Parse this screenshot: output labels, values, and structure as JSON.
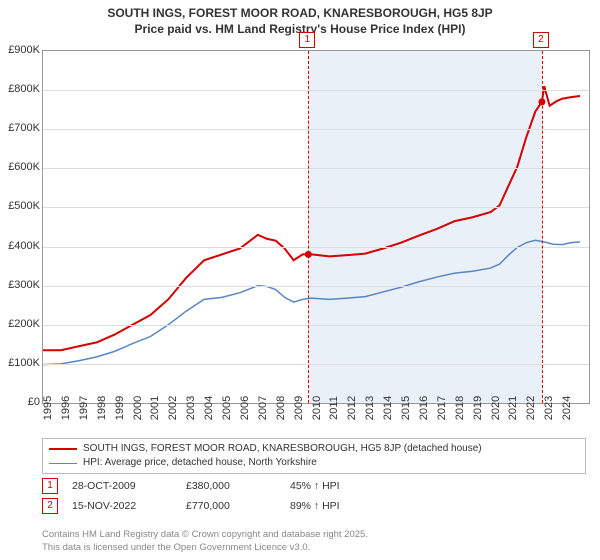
{
  "title": {
    "line1": "SOUTH INGS, FOREST MOOR ROAD, KNARESBOROUGH, HG5 8JP",
    "line2": "Price paid vs. HM Land Registry's House Price Index (HPI)",
    "fontsize": 12,
    "color": "#333333"
  },
  "chart": {
    "type": "line",
    "background_color": "#ffffff",
    "grid_color": "#dddddd",
    "border_color": "#999999",
    "shaded_region_color": "#eaf0f8",
    "x_years": [
      1995,
      1996,
      1997,
      1998,
      1999,
      2000,
      2001,
      2002,
      2003,
      2004,
      2005,
      2006,
      2007,
      2008,
      2009,
      2010,
      2011,
      2012,
      2013,
      2014,
      2015,
      2016,
      2017,
      2018,
      2019,
      2020,
      2021,
      2022,
      2023,
      2024
    ],
    "x_range": [
      1995,
      2025.5
    ],
    "ylim": [
      0,
      900
    ],
    "ytick_step": 100,
    "y_tick_labels": [
      "£0",
      "£100K",
      "£200K",
      "£300K",
      "£400K",
      "£500K",
      "£600K",
      "£700K",
      "£800K",
      "£900K"
    ],
    "tick_fontsize": 11,
    "shaded_start": 2009.82,
    "shaded_end": 2022.87,
    "series": {
      "property": {
        "color": "#d40000",
        "width": 2,
        "data": [
          [
            1995,
            135
          ],
          [
            1996,
            135
          ],
          [
            1997,
            145
          ],
          [
            1998,
            155
          ],
          [
            1999,
            175
          ],
          [
            2000,
            200
          ],
          [
            2001,
            225
          ],
          [
            2002,
            265
          ],
          [
            2003,
            320
          ],
          [
            2004,
            365
          ],
          [
            2005,
            380
          ],
          [
            2006,
            395
          ],
          [
            2007,
            430
          ],
          [
            2007.5,
            420
          ],
          [
            2008,
            415
          ],
          [
            2008.5,
            395
          ],
          [
            2009,
            365
          ],
          [
            2009.5,
            380
          ],
          [
            2009.82,
            380
          ],
          [
            2010,
            380
          ],
          [
            2011,
            375
          ],
          [
            2012,
            378
          ],
          [
            2013,
            382
          ],
          [
            2014,
            395
          ],
          [
            2015,
            410
          ],
          [
            2016,
            428
          ],
          [
            2017,
            445
          ],
          [
            2018,
            465
          ],
          [
            2019,
            475
          ],
          [
            2020,
            488
          ],
          [
            2020.5,
            505
          ],
          [
            2021,
            555
          ],
          [
            2021.5,
            605
          ],
          [
            2022,
            680
          ],
          [
            2022.5,
            745
          ],
          [
            2022.87,
            770
          ],
          [
            2023,
            810
          ],
          [
            2023.3,
            760
          ],
          [
            2023.7,
            772
          ],
          [
            2024,
            778
          ],
          [
            2024.5,
            782
          ],
          [
            2025,
            785
          ]
        ]
      },
      "hpi": {
        "color": "#5a86c5",
        "width": 1.5,
        "data": [
          [
            1995,
            98
          ],
          [
            1996,
            100
          ],
          [
            1997,
            108
          ],
          [
            1998,
            118
          ],
          [
            1999,
            132
          ],
          [
            2000,
            152
          ],
          [
            2001,
            170
          ],
          [
            2002,
            200
          ],
          [
            2003,
            235
          ],
          [
            2004,
            265
          ],
          [
            2005,
            270
          ],
          [
            2006,
            282
          ],
          [
            2007,
            300
          ],
          [
            2007.5,
            298
          ],
          [
            2008,
            290
          ],
          [
            2008.5,
            270
          ],
          [
            2009,
            258
          ],
          [
            2009.5,
            265
          ],
          [
            2010,
            268
          ],
          [
            2011,
            265
          ],
          [
            2012,
            268
          ],
          [
            2013,
            272
          ],
          [
            2014,
            284
          ],
          [
            2015,
            296
          ],
          [
            2016,
            310
          ],
          [
            2017,
            322
          ],
          [
            2018,
            332
          ],
          [
            2019,
            337
          ],
          [
            2020,
            345
          ],
          [
            2020.5,
            355
          ],
          [
            2021,
            378
          ],
          [
            2021.5,
            398
          ],
          [
            2022,
            410
          ],
          [
            2022.5,
            416
          ],
          [
            2023,
            412
          ],
          [
            2023.5,
            406
          ],
          [
            2024,
            405
          ],
          [
            2024.5,
            410
          ],
          [
            2025,
            412
          ]
        ]
      }
    },
    "markers": [
      {
        "id": "1",
        "x": 2009.82,
        "y_label_offset": -8
      },
      {
        "id": "2",
        "x": 2022.87,
        "y_label_offset": -8
      }
    ]
  },
  "legend": {
    "border_color": "#bbbbbb",
    "fontsize": 10,
    "items": [
      {
        "color": "#d40000",
        "width": 2,
        "label": "SOUTH INGS, FOREST MOOR ROAD, KNARESBOROUGH, HG5 8JP (detached house)"
      },
      {
        "color": "#5a86c5",
        "width": 1.5,
        "label": "HPI: Average price, detached house, North Yorkshire"
      }
    ]
  },
  "sales": [
    {
      "id": "1",
      "date": "28-OCT-2009",
      "price": "£380,000",
      "pct": "45% ↑ HPI"
    },
    {
      "id": "2",
      "date": "15-NOV-2022",
      "price": "£770,000",
      "pct": "89% ↑ HPI"
    }
  ],
  "footer": {
    "line1": "Contains HM Land Registry data © Crown copyright and database right 2025.",
    "line2": "This data is licensed under the Open Government Licence v3.0.",
    "color": "#888888",
    "fontsize": 9.5
  }
}
